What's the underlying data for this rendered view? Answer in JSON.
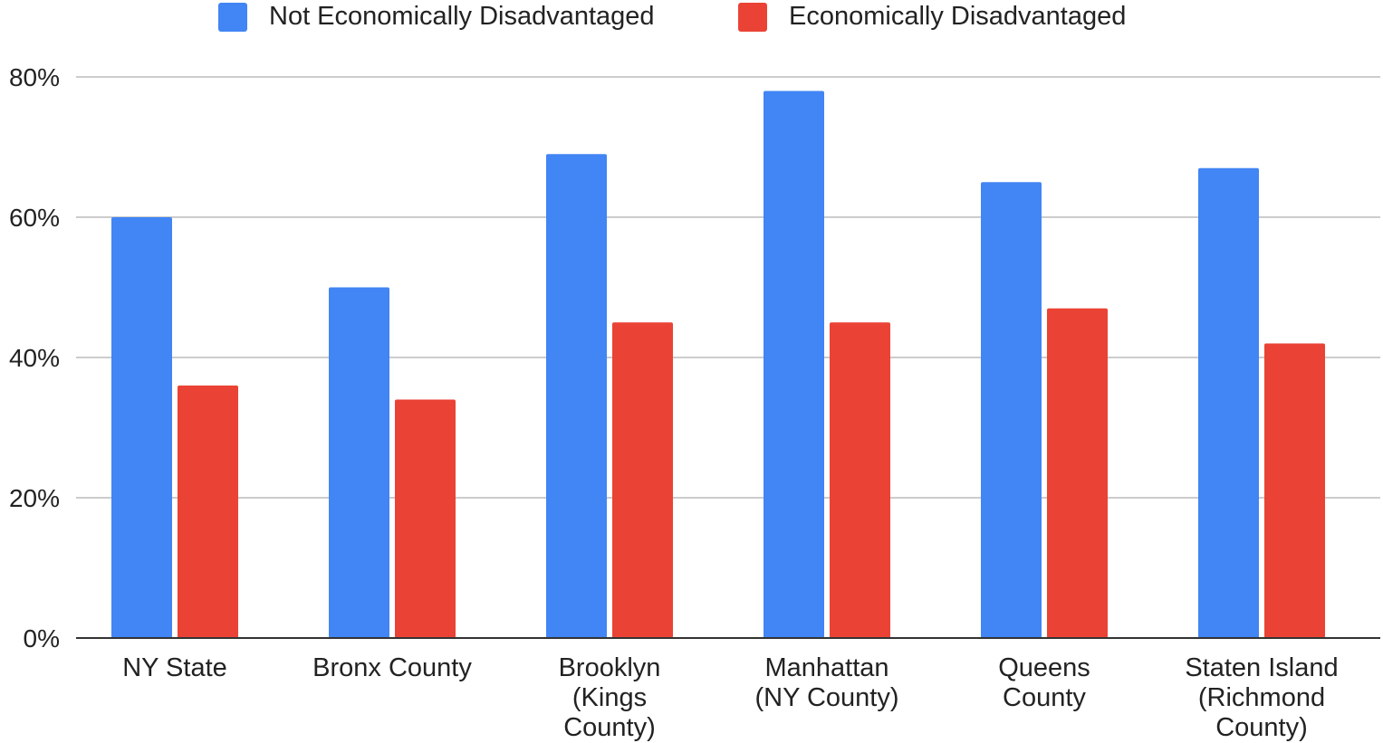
{
  "chart_data": {
    "type": "bar",
    "title": "",
    "xlabel": "",
    "ylabel": "",
    "ylim": [
      0,
      80
    ],
    "y_ticks": [
      "0%",
      "20%",
      "40%",
      "60%",
      "80%"
    ],
    "y_tick_values": [
      0,
      20,
      40,
      60,
      80
    ],
    "grid": true,
    "legend_position": "top",
    "categories": [
      [
        "NY State"
      ],
      [
        "Bronx County"
      ],
      [
        "Brooklyn",
        "(Kings",
        "County)"
      ],
      [
        "Manhattan",
        "(NY County)"
      ],
      [
        "Queens",
        "County"
      ],
      [
        "Staten Island",
        "(Richmond",
        "County)"
      ]
    ],
    "series": [
      {
        "name": "Not Economically Disadvantaged",
        "color": "#4285F4",
        "values": [
          60,
          50,
          69,
          78,
          65,
          67
        ]
      },
      {
        "name": "Economically Disadvantaged",
        "color": "#EA4335",
        "values": [
          36,
          34,
          45,
          45,
          47,
          42
        ]
      }
    ]
  }
}
